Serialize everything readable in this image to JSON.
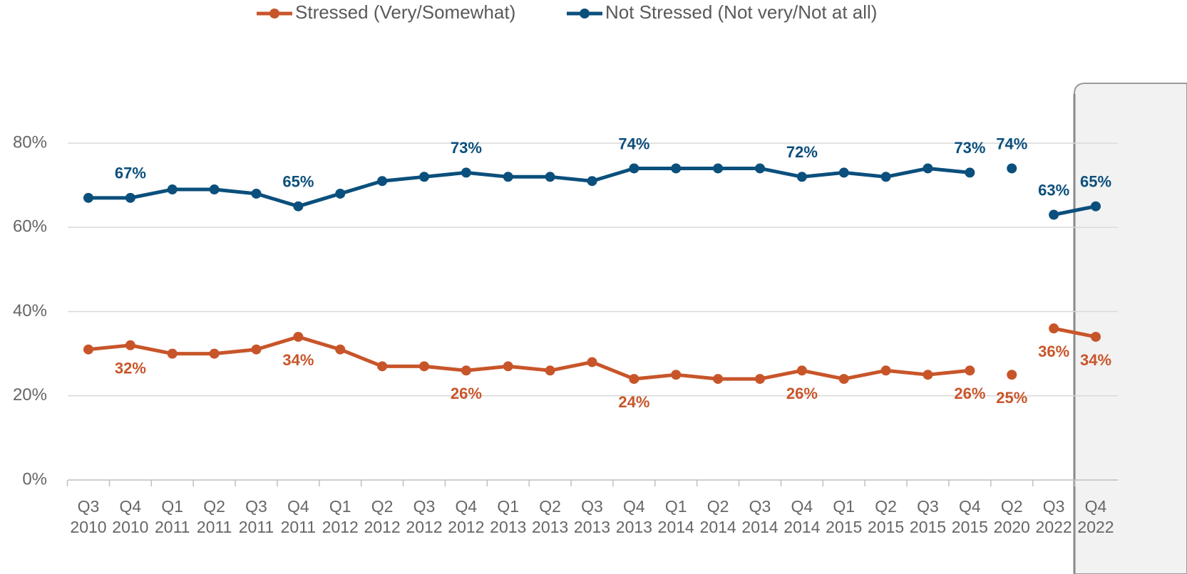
{
  "chart_data": {
    "type": "line",
    "categories": [
      "Q3 2010",
      "Q4 2010",
      "Q1 2011",
      "Q2 2011",
      "Q3 2011",
      "Q4 2011",
      "Q1 2012",
      "Q2 2012",
      "Q3 2012",
      "Q4 2012",
      "Q1 2013",
      "Q2 2013",
      "Q3 2013",
      "Q4 2013",
      "Q1 2014",
      "Q2 2014",
      "Q3 2014",
      "Q4 2014",
      "Q1 2015",
      "Q2 2015",
      "Q3 2015",
      "Q4 2015",
      "Q2 2020",
      "Q3 2022",
      "Q4 2022"
    ],
    "series": [
      {
        "name": "Stressed (Very/Somewhat)",
        "color": "#c8552a",
        "label_position": "below",
        "values": [
          31,
          32,
          30,
          30,
          31,
          34,
          31,
          27,
          27,
          26,
          27,
          26,
          28,
          24,
          25,
          24,
          24,
          26,
          24,
          26,
          25,
          26,
          25,
          36,
          34
        ],
        "value_labels": [
          null,
          "32%",
          null,
          null,
          null,
          "34%",
          null,
          null,
          null,
          "26%",
          null,
          null,
          null,
          "24%",
          null,
          null,
          null,
          "26%",
          null,
          null,
          null,
          "26%",
          "25%",
          "36%",
          "34%"
        ]
      },
      {
        "name": "Not Stressed (Not very/Not at all)",
        "color": "#0b4f7c",
        "label_position": "above",
        "values": [
          67,
          67,
          69,
          69,
          68,
          65,
          68,
          71,
          72,
          73,
          72,
          72,
          71,
          74,
          74,
          74,
          74,
          72,
          73,
          72,
          74,
          73,
          74,
          63,
          65
        ],
        "value_labels": [
          null,
          "67%",
          null,
          null,
          null,
          "65%",
          null,
          null,
          null,
          "73%",
          null,
          null,
          null,
          "74%",
          null,
          null,
          null,
          "72%",
          null,
          null,
          null,
          "73%",
          "74%",
          "63%",
          "65%"
        ]
      }
    ],
    "gaps_after": [
      21,
      22
    ],
    "ylim": [
      0,
      80
    ],
    "yticks": [
      {
        "value": 0,
        "label": "0%"
      },
      {
        "value": 20,
        "label": "20%"
      },
      {
        "value": 40,
        "label": "40%"
      },
      {
        "value": 60,
        "label": "60%"
      },
      {
        "value": 80,
        "label": "80%"
      }
    ],
    "grid": true,
    "legend": "top"
  }
}
